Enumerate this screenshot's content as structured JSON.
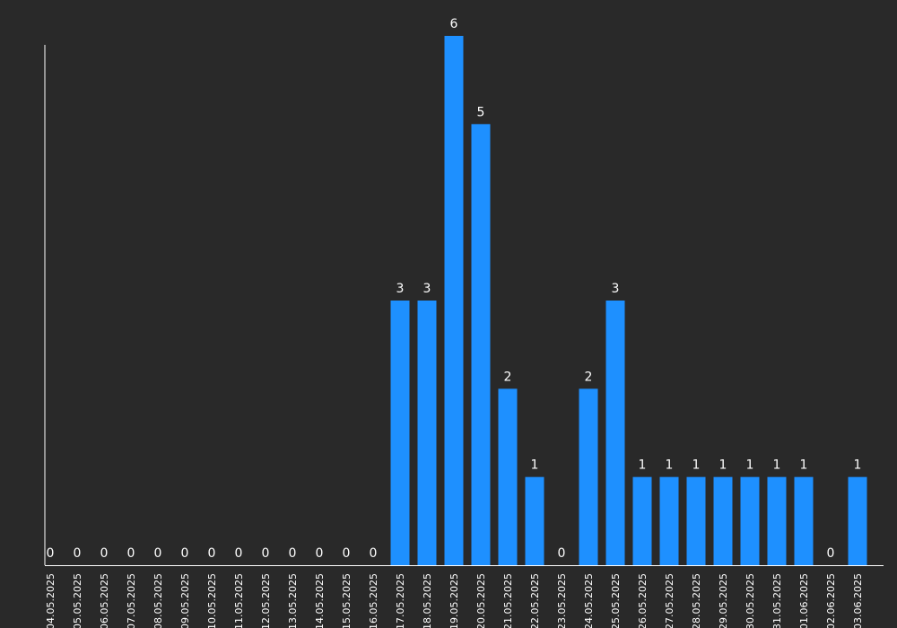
{
  "colors": {
    "background": "#292929",
    "bar": "#1e90ff",
    "axis": "#ffffff",
    "text": "#ffffff"
  },
  "chart_data": {
    "type": "bar",
    "title": "",
    "xlabel": "",
    "ylabel": "",
    "ylim": [
      0,
      6
    ],
    "grid": false,
    "legend": "none",
    "data_labels": true,
    "categories": [
      "04.05.2025",
      "05.05.2025",
      "06.05.2025",
      "07.05.2025",
      "08.05.2025",
      "09.05.2025",
      "10.05.2025",
      "11.05.2025",
      "12.05.2025",
      "13.05.2025",
      "14.05.2025",
      "15.05.2025",
      "16.05.2025",
      "17.05.2025",
      "18.05.2025",
      "19.05.2025",
      "20.05.2025",
      "21.05.2025",
      "22.05.2025",
      "23.05.2025",
      "24.05.2025",
      "25.05.2025",
      "26.05.2025",
      "27.05.2025",
      "28.05.2025",
      "29.05.2025",
      "30.05.2025",
      "31.05.2025",
      "01.06.2025",
      "02.06.2025",
      "03.06.2025"
    ],
    "values": [
      0,
      0,
      0,
      0,
      0,
      0,
      0,
      0,
      0,
      0,
      0,
      0,
      0,
      3,
      3,
      6,
      5,
      2,
      1,
      0,
      2,
      3,
      1,
      1,
      1,
      1,
      1,
      1,
      1,
      0,
      1
    ]
  }
}
